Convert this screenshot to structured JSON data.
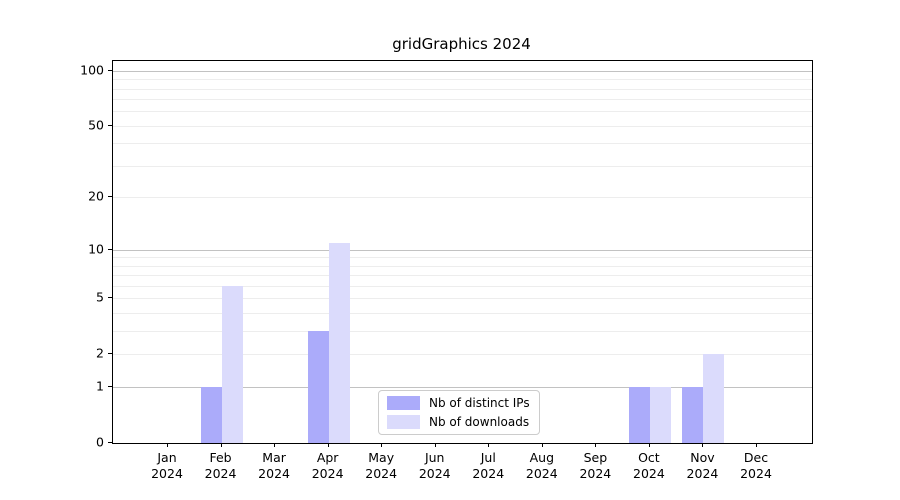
{
  "title": "gridGraphics 2024",
  "chart_data": {
    "type": "bar",
    "title": "gridGraphics 2024",
    "categories": [
      "Jan 2024",
      "Feb 2024",
      "Mar 2024",
      "Apr 2024",
      "May 2024",
      "Jun 2024",
      "Jul 2024",
      "Aug 2024",
      "Sep 2024",
      "Oct 2024",
      "Nov 2024",
      "Dec 2024"
    ],
    "category_month_labels": [
      "Jan",
      "Feb",
      "Mar",
      "Apr",
      "May",
      "Jun",
      "Jul",
      "Aug",
      "Sep",
      "Oct",
      "Nov",
      "Dec"
    ],
    "category_year_label": "2024",
    "series": [
      {
        "name": "Nb of distinct IPs",
        "color": "#ababfa",
        "values": [
          0,
          1,
          0,
          3,
          0,
          0,
          0,
          0,
          0,
          1,
          1,
          0
        ]
      },
      {
        "name": "Nb of downloads",
        "color": "#dbdbfc",
        "values": [
          0,
          6,
          0,
          11,
          0,
          0,
          0,
          0,
          0,
          1,
          2,
          0
        ]
      }
    ],
    "xlabel": "",
    "ylabel": "",
    "yscale": "log1p",
    "ylim": [
      0,
      113
    ],
    "yticks": [
      0,
      1,
      2,
      5,
      10,
      20,
      50,
      100
    ],
    "major_gridlines": [
      1,
      10,
      100
    ],
    "minor_gridlines": [
      2,
      3,
      4,
      5,
      6,
      7,
      8,
      9,
      20,
      30,
      40,
      50,
      60,
      70,
      80,
      90
    ],
    "grid": true,
    "legend_position": "lower-center-inside"
  }
}
